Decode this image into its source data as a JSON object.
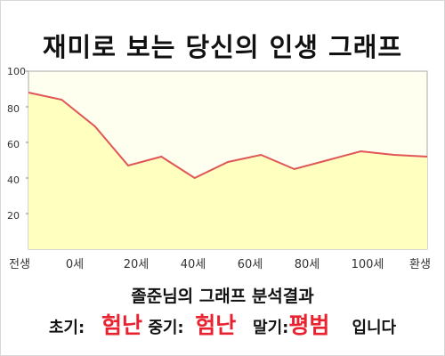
{
  "title": "재미로 보는 당신의 인생 그래프",
  "subtitle": "졸준님의 그래프 분석결과",
  "result": {
    "early_label": "초기:",
    "early_value": "험난",
    "middle_label": "중기:",
    "middle_value": "험난",
    "late_label": "말기:",
    "late_value": "평범",
    "suffix": "입니다"
  },
  "colors": {
    "fill": "#ffffc0",
    "line": "#e05555",
    "plot_bg": "#fffff0",
    "highlight": "#e8232f"
  },
  "chart_data": {
    "type": "area",
    "title": "재미로 보는 당신의 인생 그래프",
    "xlabel": "",
    "ylabel": "",
    "ylim": [
      0,
      100
    ],
    "y_ticks": [
      20,
      40,
      60,
      80,
      100
    ],
    "x_ticks": [
      "전생",
      "0세",
      "20세",
      "40세",
      "60세",
      "80세",
      "100세",
      "환생"
    ],
    "grid": false,
    "series": [
      {
        "values": [
          88,
          84,
          69,
          47,
          52,
          40,
          49,
          53,
          45,
          50,
          55,
          53,
          52
        ]
      }
    ]
  }
}
